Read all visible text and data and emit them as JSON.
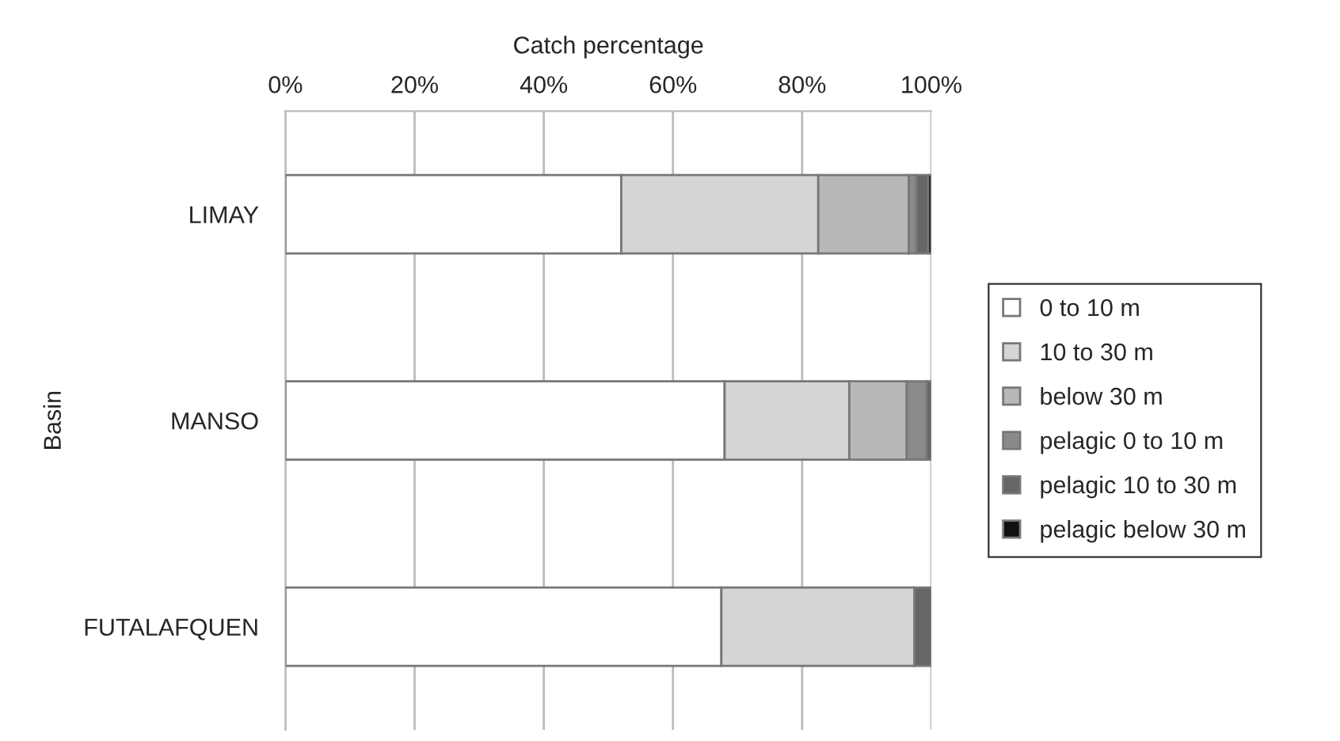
{
  "chart_data": {
    "type": "bar",
    "orientation": "horizontal",
    "stacked": true,
    "xlabel": "Catch percentage",
    "ylabel": "Basin",
    "categories": [
      "LIMAY",
      "MANSO",
      "FUTALAFQUEN"
    ],
    "series": [
      {
        "name": "0 to 10 m",
        "color": "#ffffff",
        "values": [
          52,
          68,
          67.5
        ]
      },
      {
        "name": "10 to 30 m",
        "color": "#d4d5d7",
        "values": [
          30.5,
          19.3,
          29.9
        ]
      },
      {
        "name": "below 30 m",
        "color": "#b8b8ba",
        "values": [
          14,
          8.9,
          null
        ]
      },
      {
        "name": "pelagic 0 to 10 m",
        "color": "#8a8a8c",
        "values": [
          1.2,
          3.1,
          null
        ]
      },
      {
        "name": "pelagic 10 to 30 m",
        "color": "#666668",
        "values": [
          1.8,
          0.7,
          2.6
        ]
      },
      {
        "name": "pelagic below 30 m",
        "color": "#111111",
        "values": [
          0.5,
          null,
          null
        ]
      }
    ],
    "xlim": [
      0,
      100
    ],
    "xticks": [
      {
        "value": 0,
        "label": "0%"
      },
      {
        "value": 20,
        "label": "20%"
      },
      {
        "value": 40,
        "label": "40%"
      },
      {
        "value": 60,
        "label": "60%"
      },
      {
        "value": 80,
        "label": "80%"
      },
      {
        "value": 100,
        "label": "100%"
      }
    ],
    "grid": "x",
    "legend": "right"
  }
}
